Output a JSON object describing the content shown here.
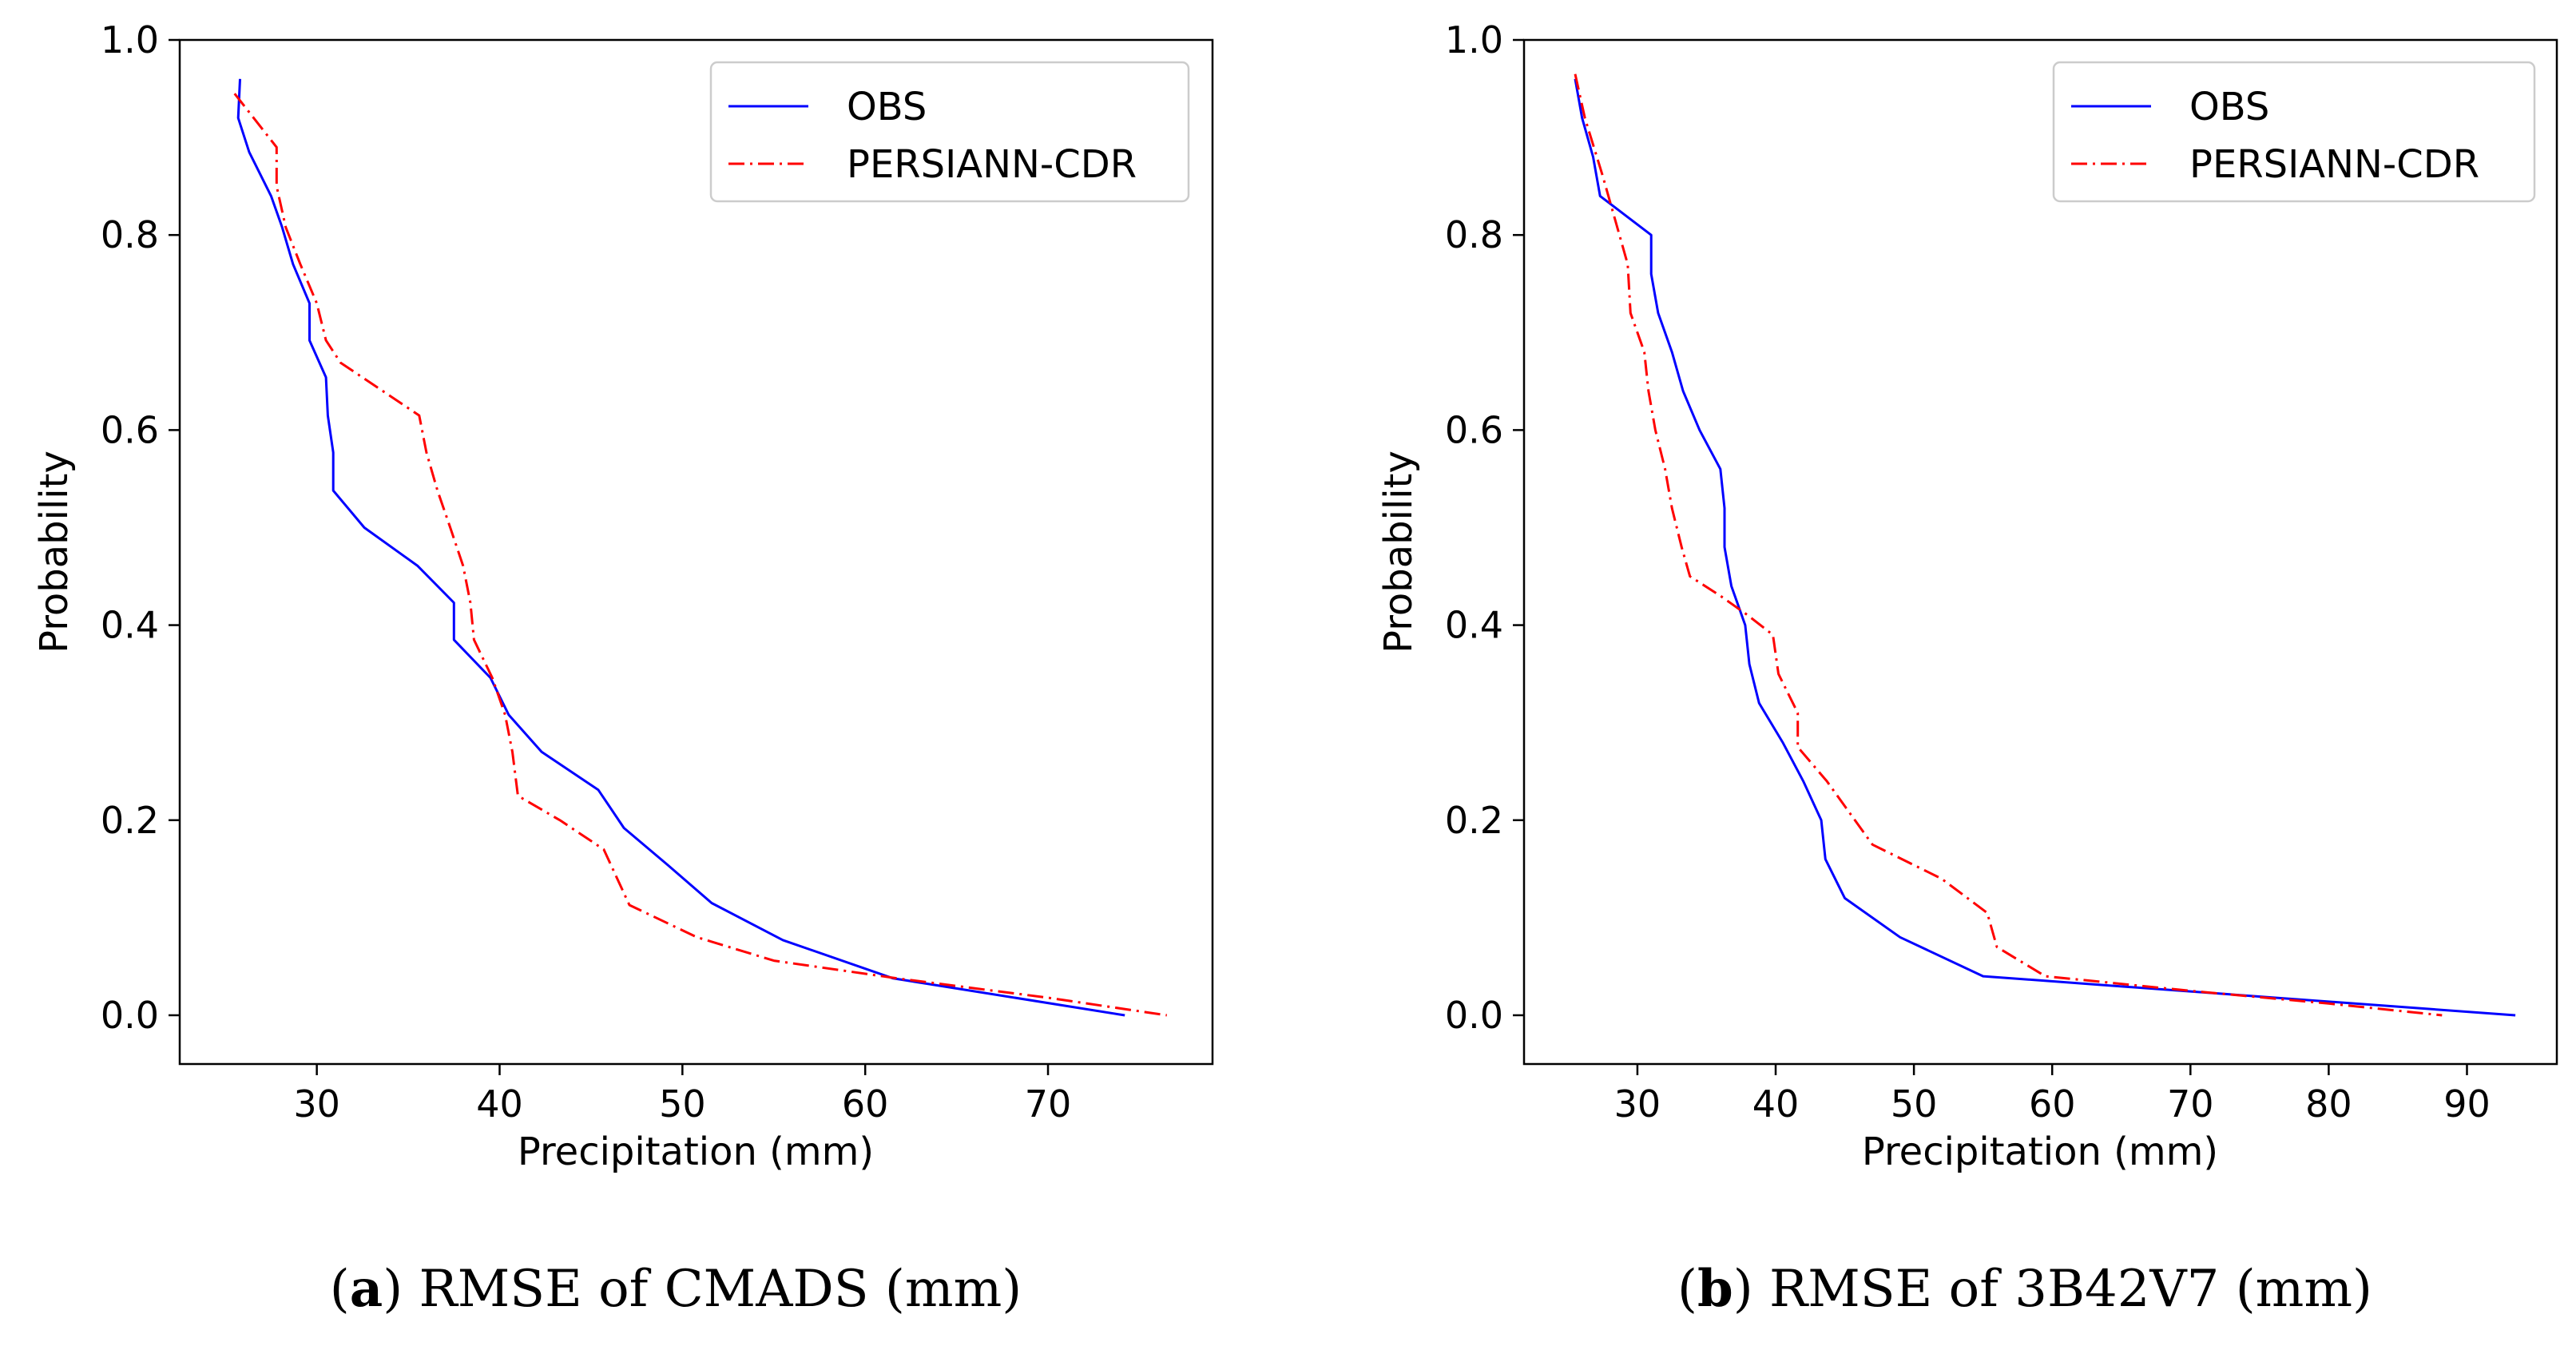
{
  "chart_data": [
    {
      "type": "line",
      "panel": "a",
      "caption_bold": "a",
      "caption_text": "RMSE of CMADS (mm)",
      "xlabel": "Precipitation (mm)",
      "ylabel": "Probability",
      "xlim": [
        22.5,
        79
      ],
      "ylim": [
        -0.05,
        1.0
      ],
      "xticks": [
        30,
        40,
        50,
        60,
        70
      ],
      "yticks": [
        0.0,
        0.2,
        0.4,
        0.6,
        0.8,
        1.0
      ],
      "ytick_labels": [
        "0.0",
        "0.2",
        "0.4",
        "0.6",
        "0.8",
        "1.0"
      ],
      "legend_position": "top-right",
      "series": [
        {
          "name": "OBS",
          "color": "#0000ff",
          "dash": "solid",
          "points": [
            [
              25.8,
              0.96
            ],
            [
              25.7,
              0.92
            ],
            [
              26.3,
              0.885
            ],
            [
              27.5,
              0.84
            ],
            [
              28.1,
              0.808
            ],
            [
              28.7,
              0.77
            ],
            [
              29.6,
              0.73
            ],
            [
              29.6,
              0.692
            ],
            [
              30.5,
              0.654
            ],
            [
              30.6,
              0.615
            ],
            [
              30.9,
              0.577
            ],
            [
              30.9,
              0.538
            ],
            [
              32.6,
              0.5
            ],
            [
              35.5,
              0.461
            ],
            [
              37.5,
              0.423
            ],
            [
              37.5,
              0.385
            ],
            [
              39.5,
              0.346
            ],
            [
              40.5,
              0.308
            ],
            [
              42.3,
              0.27
            ],
            [
              45.4,
              0.231
            ],
            [
              46.8,
              0.192
            ],
            [
              49.2,
              0.154
            ],
            [
              51.6,
              0.115
            ],
            [
              55.5,
              0.077
            ],
            [
              61.5,
              0.038
            ],
            [
              74.2,
              0.0
            ]
          ]
        },
        {
          "name": "PERSIANN-CDR",
          "color": "#ff0000",
          "dash": "dashdot",
          "points": [
            [
              25.5,
              0.945
            ],
            [
              27.8,
              0.89
            ],
            [
              27.8,
              0.85
            ],
            [
              28.3,
              0.808
            ],
            [
              29.1,
              0.77
            ],
            [
              30.0,
              0.73
            ],
            [
              30.5,
              0.692
            ],
            [
              31.3,
              0.669
            ],
            [
              35.6,
              0.615
            ],
            [
              36.0,
              0.577
            ],
            [
              36.6,
              0.538
            ],
            [
              37.3,
              0.5
            ],
            [
              38.0,
              0.461
            ],
            [
              38.4,
              0.423
            ],
            [
              38.6,
              0.385
            ],
            [
              39.6,
              0.346
            ],
            [
              40.3,
              0.308
            ],
            [
              40.7,
              0.27
            ],
            [
              41.0,
              0.225
            ],
            [
              43.3,
              0.2
            ],
            [
              45.7,
              0.17
            ],
            [
              47.1,
              0.113
            ],
            [
              50.8,
              0.08
            ],
            [
              55.0,
              0.056
            ],
            [
              61.7,
              0.038
            ],
            [
              70.0,
              0.018
            ],
            [
              76.5,
              0.0
            ]
          ]
        }
      ]
    },
    {
      "type": "line",
      "panel": "b",
      "caption_bold": "b",
      "caption_text": "RMSE of 3B42V7 (mm)",
      "xlabel": "Precipitation (mm)",
      "ylabel": "Probability",
      "xlim": [
        21.8,
        96.5
      ],
      "ylim": [
        -0.05,
        1.0
      ],
      "xticks": [
        30,
        40,
        50,
        60,
        70,
        80,
        90
      ],
      "yticks": [
        0.0,
        0.2,
        0.4,
        0.6,
        0.8,
        1.0
      ],
      "ytick_labels": [
        "0.0",
        "0.2",
        "0.4",
        "0.6",
        "0.8",
        "1.0"
      ],
      "legend_position": "top-right",
      "series": [
        {
          "name": "OBS",
          "color": "#0000ff",
          "dash": "solid",
          "points": [
            [
              25.5,
              0.96
            ],
            [
              26.0,
              0.92
            ],
            [
              26.8,
              0.88
            ],
            [
              27.3,
              0.84
            ],
            [
              31.0,
              0.8
            ],
            [
              31.0,
              0.76
            ],
            [
              31.5,
              0.72
            ],
            [
              32.5,
              0.68
            ],
            [
              33.3,
              0.64
            ],
            [
              34.5,
              0.6
            ],
            [
              36.0,
              0.56
            ],
            [
              36.3,
              0.52
            ],
            [
              36.3,
              0.48
            ],
            [
              36.8,
              0.44
            ],
            [
              37.8,
              0.4
            ],
            [
              38.1,
              0.36
            ],
            [
              38.8,
              0.32
            ],
            [
              40.5,
              0.28
            ],
            [
              42.0,
              0.24
            ],
            [
              43.3,
              0.2
            ],
            [
              43.6,
              0.16
            ],
            [
              45.0,
              0.12
            ],
            [
              49.0,
              0.08
            ],
            [
              55.0,
              0.04
            ],
            [
              93.5,
              0.0
            ]
          ]
        },
        {
          "name": "PERSIANN-CDR",
          "color": "#ff0000",
          "dash": "dashdot",
          "points": [
            [
              25.5,
              0.965
            ],
            [
              26.2,
              0.92
            ],
            [
              27.5,
              0.86
            ],
            [
              29.3,
              0.77
            ],
            [
              29.5,
              0.72
            ],
            [
              30.5,
              0.68
            ],
            [
              30.8,
              0.64
            ],
            [
              31.3,
              0.6
            ],
            [
              32.0,
              0.56
            ],
            [
              32.5,
              0.52
            ],
            [
              33.2,
              0.48
            ],
            [
              33.8,
              0.45
            ],
            [
              36.0,
              0.43
            ],
            [
              38.0,
              0.41
            ],
            [
              39.8,
              0.39
            ],
            [
              40.2,
              0.35
            ],
            [
              41.6,
              0.31
            ],
            [
              41.6,
              0.275
            ],
            [
              43.7,
              0.24
            ],
            [
              47.0,
              0.175
            ],
            [
              52.0,
              0.14
            ],
            [
              55.3,
              0.105
            ],
            [
              56.0,
              0.07
            ],
            [
              59.5,
              0.04
            ],
            [
              70.0,
              0.025
            ],
            [
              80.0,
              0.012
            ],
            [
              88.2,
              0.0
            ]
          ]
        }
      ]
    }
  ]
}
